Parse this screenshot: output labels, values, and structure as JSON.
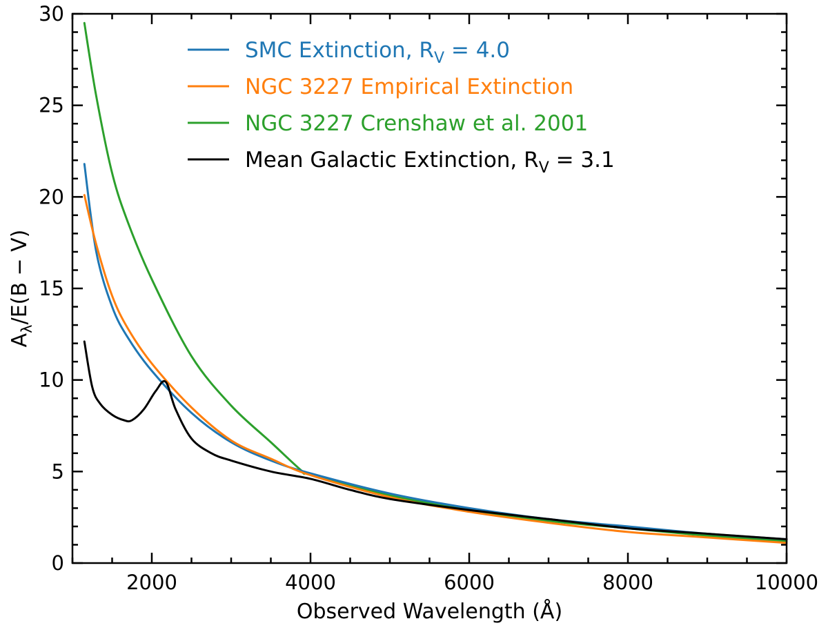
{
  "chart_data": {
    "type": "line",
    "xlabel": "Observed Wavelength (Å)",
    "ylabel": {
      "main": "A",
      "sub": "λ",
      "rest": "/E(B − V)"
    },
    "xlim": [
      1000,
      10000
    ],
    "ylim": [
      0,
      30
    ],
    "xticks": [
      2000,
      4000,
      6000,
      8000,
      10000
    ],
    "yticks": [
      0,
      5,
      10,
      15,
      20,
      25,
      30
    ],
    "grid": false,
    "legend_position": "top",
    "series": [
      {
        "name": "SMC Extinction, R",
        "name_sub": "V",
        "name_tail": " = 4.0",
        "color": "#1f77b4",
        "x": [
          1150,
          1300,
          1500,
          1700,
          2000,
          2500,
          3000,
          3500,
          4000,
          5000,
          6000,
          7000,
          8000,
          9000,
          10000
        ],
        "y": [
          21.8,
          17.0,
          14.0,
          12.3,
          10.5,
          8.2,
          6.6,
          5.6,
          4.9,
          3.8,
          3.0,
          2.4,
          2.0,
          1.6,
          1.3
        ]
      },
      {
        "name": "NGC 3227 Empirical Extinction",
        "color": "#ff7f0e",
        "x": [
          1150,
          1300,
          1500,
          1700,
          2000,
          2500,
          3000,
          3500,
          4000,
          5000,
          6000,
          7000,
          8000,
          9000,
          10000
        ],
        "y": [
          20.1,
          17.4,
          14.6,
          12.8,
          10.9,
          8.5,
          6.7,
          5.7,
          4.8,
          3.6,
          2.8,
          2.2,
          1.7,
          1.4,
          1.1
        ]
      },
      {
        "name": "NGC 3227 Crenshaw et al. 2001",
        "color": "#2ca02c",
        "x": [
          1150,
          1300,
          1500,
          1700,
          2000,
          2500,
          3000,
          3500,
          3900,
          4000,
          5000,
          6000,
          7000,
          8000,
          9000,
          10000
        ],
        "y": [
          29.5,
          25.5,
          21.3,
          18.6,
          15.5,
          11.3,
          8.6,
          6.6,
          5.0,
          4.85,
          3.7,
          2.9,
          2.3,
          1.9,
          1.5,
          1.2
        ]
      },
      {
        "name": "Mean Galactic Extinction, R",
        "name_sub": "V",
        "name_tail": " = 3.1",
        "color": "#000000",
        "x": [
          1150,
          1250,
          1350,
          1500,
          1650,
          1750,
          1900,
          2050,
          2175,
          2300,
          2500,
          2750,
          3000,
          3500,
          4000,
          4500,
          5000,
          6000,
          7000,
          8000,
          9000,
          10000
        ],
        "y": [
          12.1,
          9.6,
          8.7,
          8.1,
          7.8,
          7.8,
          8.4,
          9.4,
          9.9,
          8.4,
          6.8,
          6.0,
          5.6,
          5.0,
          4.6,
          4.0,
          3.5,
          2.9,
          2.4,
          1.9,
          1.6,
          1.3
        ]
      }
    ]
  }
}
